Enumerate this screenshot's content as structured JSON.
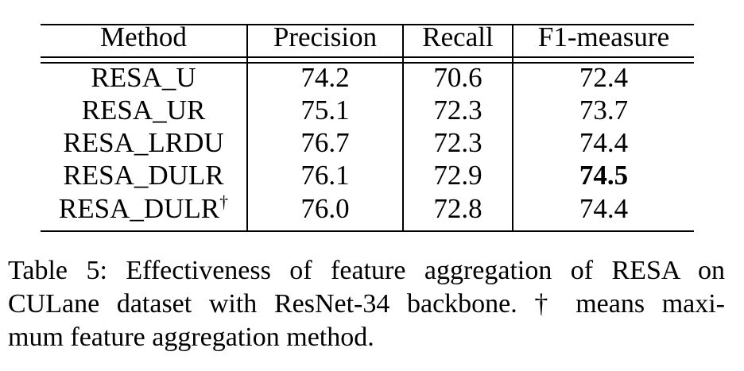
{
  "table": {
    "headers": [
      "Method",
      "Precision",
      "Recall",
      "F1-measure"
    ],
    "rows": [
      {
        "method": "RESA_U",
        "precision": "74.2",
        "recall": "70.6",
        "f1": "72.4"
      },
      {
        "method": "RESA_UR",
        "precision": "75.1",
        "recall": "72.3",
        "f1": "73.7"
      },
      {
        "method": "RESA_LRDU",
        "precision": "76.7",
        "recall": "72.3",
        "f1": "74.4"
      },
      {
        "method": "RESA_DULR",
        "precision": "76.1",
        "recall": "72.9",
        "f1": "74.5"
      },
      {
        "method": "RESA_DULR",
        "dagger": "†",
        "precision": "76.0",
        "recall": "72.8",
        "f1": "74.4"
      }
    ]
  },
  "caption": {
    "line1": "Table 5: Effectiveness of feature aggregation of RESA on",
    "line2": "CULane dataset with ResNet-34 backbone. † means maxi-",
    "line3": "mum feature aggregation method."
  }
}
